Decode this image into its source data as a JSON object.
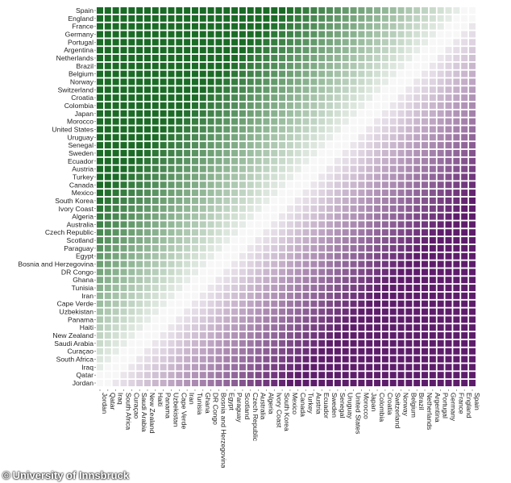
{
  "chart_data": {
    "type": "heatmap",
    "title": "",
    "xlabel": "",
    "ylabel": "",
    "teams": [
      "Spain",
      "England",
      "France",
      "Germany",
      "Portugal",
      "Argentina",
      "Netherlands",
      "Brazil",
      "Belgium",
      "Norway",
      "Switzerland",
      "Croatia",
      "Colombia",
      "Japan",
      "Morocco",
      "United States",
      "Uruguay",
      "Senegal",
      "Sweden",
      "Ecuador",
      "Austria",
      "Turkey",
      "Canada",
      "Mexico",
      "South Korea",
      "Ivory Coast",
      "Algeria",
      "Australia",
      "Czech Republic",
      "Scotland",
      "Paraguay",
      "Egypt",
      "Bosnia and Herzegovina",
      "DR Congo",
      "Ghana",
      "Tunisia",
      "Iran",
      "Cape Verde",
      "Uzbekistan",
      "Panama",
      "Haiti",
      "New Zealand",
      "Saudi Arabia",
      "Curaçao",
      "South Africa",
      "Iraq",
      "Qatar",
      "Jordan"
    ],
    "rows": "teams (top to bottom)",
    "columns": "teams reversed (left to right)",
    "value_range": [
      -1,
      1
    ],
    "colors": {
      "positive": "#1b6b26",
      "neutral": "#f7f7f7",
      "negative": "#5e1d6b"
    }
  },
  "credit": {
    "symbol": "©",
    "text": "University of Innsbruck"
  }
}
